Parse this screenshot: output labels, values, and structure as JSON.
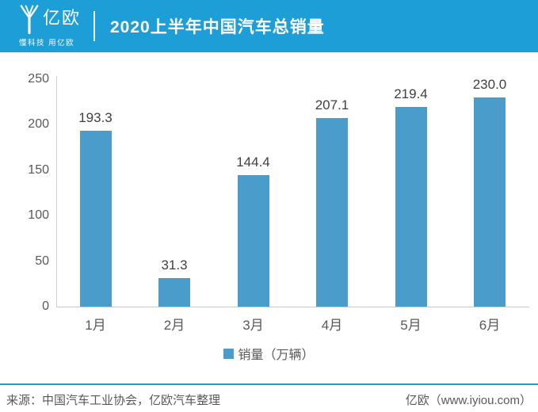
{
  "header": {
    "logo_text": "亿欧",
    "logo_tagline": "懂科技 用亿欧",
    "title": "2020上半年中国汽车总销量"
  },
  "chart_data": {
    "type": "bar",
    "title": "2020上半年中国汽车总销量",
    "categories": [
      "1月",
      "2月",
      "3月",
      "4月",
      "5月",
      "6月"
    ],
    "series": [
      {
        "name": "销量（万辆）",
        "values": [
          193.3,
          31.3,
          144.4,
          207.1,
          219.4,
          230.0
        ]
      }
    ],
    "value_labels": [
      "193.3",
      "31.3",
      "144.4",
      "207.1",
      "219.4",
      "230.0"
    ],
    "ylim": [
      0,
      250
    ],
    "yticks": [
      0,
      50,
      100,
      150,
      200,
      250
    ],
    "grid": false,
    "legend_position": "bottom",
    "legend_label": "销量（万辆）",
    "bar_color": "#4A9CCB"
  },
  "footer": {
    "source": "来源：中国汽车工业协会，亿欧汽车整理",
    "site": "亿欧（www.iyiou.com）"
  },
  "colors": {
    "header_bg": "#1D9ED6",
    "bar": "#4A9CCB",
    "axis_line": "#cfcfcf",
    "text_gray": "#595959",
    "label_dark": "#404040"
  }
}
